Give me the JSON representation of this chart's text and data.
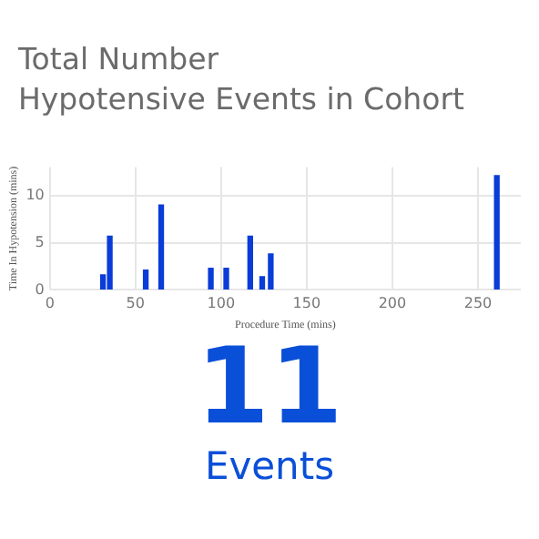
{
  "chart_data": {
    "type": "bar",
    "title": "Total Number\nHypotensive Events in Cohort",
    "xlabel": "Procedure Time (mins)",
    "ylabel": "Time In Hypotension (mins)",
    "x": [
      31,
      35,
      56,
      65,
      94,
      103,
      117,
      124,
      129,
      261
    ],
    "values": [
      1.6,
      5.7,
      2.1,
      9,
      2.3,
      2.3,
      5.7,
      1.4,
      3.8,
      12.1
    ],
    "color": "#0a3cd8",
    "xlim": [
      0,
      275
    ],
    "xticks": [
      0,
      50,
      100,
      150,
      200,
      250
    ],
    "ylim": [
      0,
      13
    ],
    "yticks": [
      0,
      5,
      10
    ],
    "grid": true,
    "legend": false,
    "annotations": [
      "11",
      "Events"
    ]
  }
}
